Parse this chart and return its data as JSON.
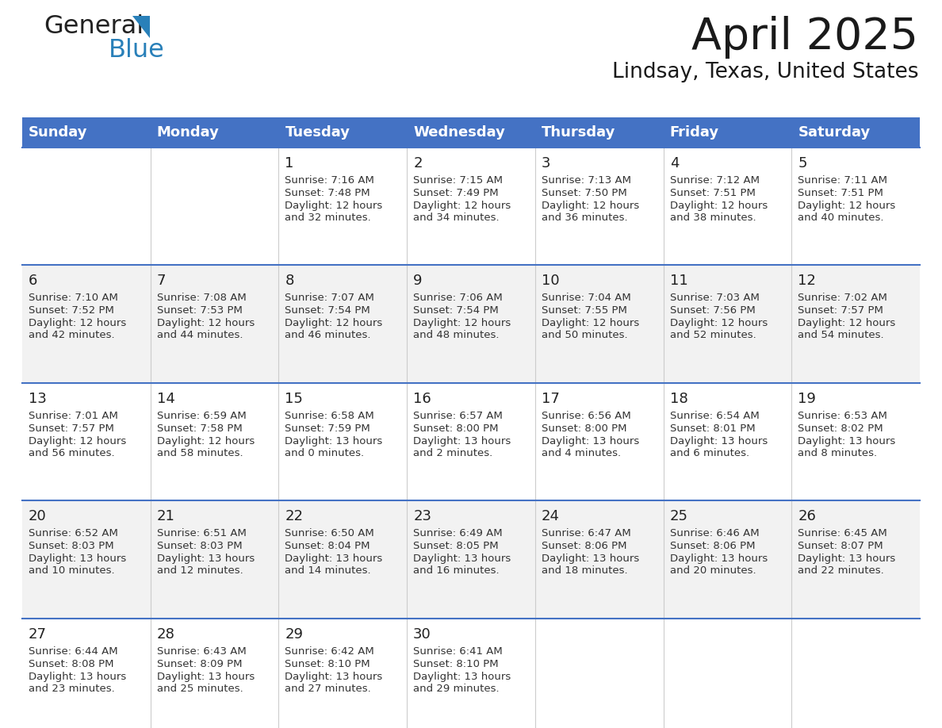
{
  "title": "April 2025",
  "subtitle": "Lindsay, Texas, United States",
  "header_bg_color": "#4472C4",
  "header_text_color": "#FFFFFF",
  "row_bg_colors": [
    "#FFFFFF",
    "#F2F2F2",
    "#FFFFFF",
    "#F2F2F2",
    "#FFFFFF"
  ],
  "border_color": "#4472C4",
  "cell_border_color": "#CCCCCC",
  "day_names": [
    "Sunday",
    "Monday",
    "Tuesday",
    "Wednesday",
    "Thursday",
    "Friday",
    "Saturday"
  ],
  "days": [
    {
      "day": 1,
      "col": 2,
      "row": 0,
      "sunrise": "7:16 AM",
      "sunset": "7:48 PM",
      "daylight": "12 hours",
      "daylight2": "and 32 minutes."
    },
    {
      "day": 2,
      "col": 3,
      "row": 0,
      "sunrise": "7:15 AM",
      "sunset": "7:49 PM",
      "daylight": "12 hours",
      "daylight2": "and 34 minutes."
    },
    {
      "day": 3,
      "col": 4,
      "row": 0,
      "sunrise": "7:13 AM",
      "sunset": "7:50 PM",
      "daylight": "12 hours",
      "daylight2": "and 36 minutes."
    },
    {
      "day": 4,
      "col": 5,
      "row": 0,
      "sunrise": "7:12 AM",
      "sunset": "7:51 PM",
      "daylight": "12 hours",
      "daylight2": "and 38 minutes."
    },
    {
      "day": 5,
      "col": 6,
      "row": 0,
      "sunrise": "7:11 AM",
      "sunset": "7:51 PM",
      "daylight": "12 hours",
      "daylight2": "and 40 minutes."
    },
    {
      "day": 6,
      "col": 0,
      "row": 1,
      "sunrise": "7:10 AM",
      "sunset": "7:52 PM",
      "daylight": "12 hours",
      "daylight2": "and 42 minutes."
    },
    {
      "day": 7,
      "col": 1,
      "row": 1,
      "sunrise": "7:08 AM",
      "sunset": "7:53 PM",
      "daylight": "12 hours",
      "daylight2": "and 44 minutes."
    },
    {
      "day": 8,
      "col": 2,
      "row": 1,
      "sunrise": "7:07 AM",
      "sunset": "7:54 PM",
      "daylight": "12 hours",
      "daylight2": "and 46 minutes."
    },
    {
      "day": 9,
      "col": 3,
      "row": 1,
      "sunrise": "7:06 AM",
      "sunset": "7:54 PM",
      "daylight": "12 hours",
      "daylight2": "and 48 minutes."
    },
    {
      "day": 10,
      "col": 4,
      "row": 1,
      "sunrise": "7:04 AM",
      "sunset": "7:55 PM",
      "daylight": "12 hours",
      "daylight2": "and 50 minutes."
    },
    {
      "day": 11,
      "col": 5,
      "row": 1,
      "sunrise": "7:03 AM",
      "sunset": "7:56 PM",
      "daylight": "12 hours",
      "daylight2": "and 52 minutes."
    },
    {
      "day": 12,
      "col": 6,
      "row": 1,
      "sunrise": "7:02 AM",
      "sunset": "7:57 PM",
      "daylight": "12 hours",
      "daylight2": "and 54 minutes."
    },
    {
      "day": 13,
      "col": 0,
      "row": 2,
      "sunrise": "7:01 AM",
      "sunset": "7:57 PM",
      "daylight": "12 hours",
      "daylight2": "and 56 minutes."
    },
    {
      "day": 14,
      "col": 1,
      "row": 2,
      "sunrise": "6:59 AM",
      "sunset": "7:58 PM",
      "daylight": "12 hours",
      "daylight2": "and 58 minutes."
    },
    {
      "day": 15,
      "col": 2,
      "row": 2,
      "sunrise": "6:58 AM",
      "sunset": "7:59 PM",
      "daylight": "13 hours",
      "daylight2": "and 0 minutes."
    },
    {
      "day": 16,
      "col": 3,
      "row": 2,
      "sunrise": "6:57 AM",
      "sunset": "8:00 PM",
      "daylight": "13 hours",
      "daylight2": "and 2 minutes."
    },
    {
      "day": 17,
      "col": 4,
      "row": 2,
      "sunrise": "6:56 AM",
      "sunset": "8:00 PM",
      "daylight": "13 hours",
      "daylight2": "and 4 minutes."
    },
    {
      "day": 18,
      "col": 5,
      "row": 2,
      "sunrise": "6:54 AM",
      "sunset": "8:01 PM",
      "daylight": "13 hours",
      "daylight2": "and 6 minutes."
    },
    {
      "day": 19,
      "col": 6,
      "row": 2,
      "sunrise": "6:53 AM",
      "sunset": "8:02 PM",
      "daylight": "13 hours",
      "daylight2": "and 8 minutes."
    },
    {
      "day": 20,
      "col": 0,
      "row": 3,
      "sunrise": "6:52 AM",
      "sunset": "8:03 PM",
      "daylight": "13 hours",
      "daylight2": "and 10 minutes."
    },
    {
      "day": 21,
      "col": 1,
      "row": 3,
      "sunrise": "6:51 AM",
      "sunset": "8:03 PM",
      "daylight": "13 hours",
      "daylight2": "and 12 minutes."
    },
    {
      "day": 22,
      "col": 2,
      "row": 3,
      "sunrise": "6:50 AM",
      "sunset": "8:04 PM",
      "daylight": "13 hours",
      "daylight2": "and 14 minutes."
    },
    {
      "day": 23,
      "col": 3,
      "row": 3,
      "sunrise": "6:49 AM",
      "sunset": "8:05 PM",
      "daylight": "13 hours",
      "daylight2": "and 16 minutes."
    },
    {
      "day": 24,
      "col": 4,
      "row": 3,
      "sunrise": "6:47 AM",
      "sunset": "8:06 PM",
      "daylight": "13 hours",
      "daylight2": "and 18 minutes."
    },
    {
      "day": 25,
      "col": 5,
      "row": 3,
      "sunrise": "6:46 AM",
      "sunset": "8:06 PM",
      "daylight": "13 hours",
      "daylight2": "and 20 minutes."
    },
    {
      "day": 26,
      "col": 6,
      "row": 3,
      "sunrise": "6:45 AM",
      "sunset": "8:07 PM",
      "daylight": "13 hours",
      "daylight2": "and 22 minutes."
    },
    {
      "day": 27,
      "col": 0,
      "row": 4,
      "sunrise": "6:44 AM",
      "sunset": "8:08 PM",
      "daylight": "13 hours",
      "daylight2": "and 23 minutes."
    },
    {
      "day": 28,
      "col": 1,
      "row": 4,
      "sunrise": "6:43 AM",
      "sunset": "8:09 PM",
      "daylight": "13 hours",
      "daylight2": "and 25 minutes."
    },
    {
      "day": 29,
      "col": 2,
      "row": 4,
      "sunrise": "6:42 AM",
      "sunset": "8:10 PM",
      "daylight": "13 hours",
      "daylight2": "and 27 minutes."
    },
    {
      "day": 30,
      "col": 3,
      "row": 4,
      "sunrise": "6:41 AM",
      "sunset": "8:10 PM",
      "daylight": "13 hours",
      "daylight2": "and 29 minutes."
    }
  ],
  "logo_color_general": "#222222",
  "logo_color_blue": "#2980B9",
  "logo_triangle_color": "#2980B9",
  "title_color": "#1a1a1a",
  "subtitle_color": "#1a1a1a",
  "text_color": "#333333"
}
